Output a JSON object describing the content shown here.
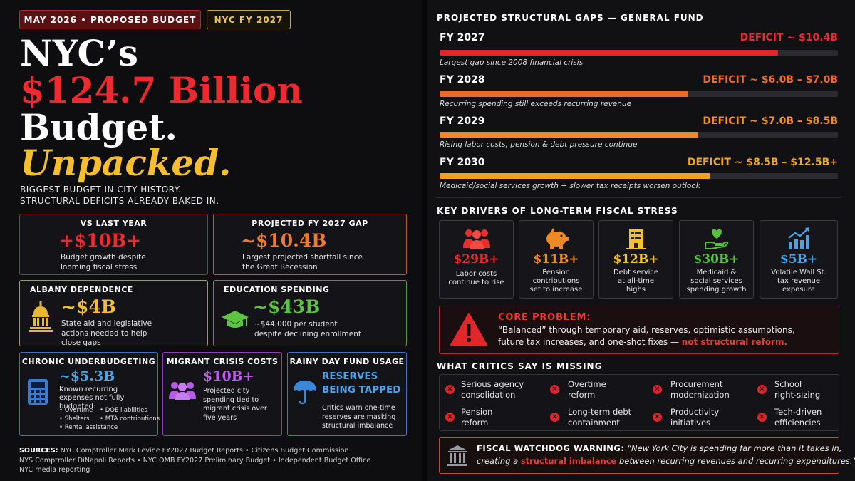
{
  "header": {
    "pill_date": "MAY 2026  •  PROPOSED BUDGET",
    "pill_fy": "NYC FY 2027",
    "title_line1": "NYC’s",
    "title_line2": "$124.7 Billion",
    "title_line3": "Budget.",
    "title_line4": "Unpacked.",
    "subtitle_line1": "BIGGEST BUDGET IN CITY HISTORY.",
    "subtitle_line2": "STRUCTURAL DEFICITS ALREADY BAKED IN."
  },
  "cards": {
    "vs_last_year": {
      "title": "VS LAST YEAR",
      "value": "+$10B+",
      "desc": "Budget growth despite looming fiscal stress"
    },
    "projected_gap": {
      "title": "PROJECTED FY 2027 GAP",
      "value": "~$10.4B",
      "desc": "Largest projected shortfall since the Great Recession"
    },
    "albany": {
      "title": "ALBANY DEPENDENCE",
      "value": "~$4B",
      "desc": "State aid and legislative actions needed to help close gaps"
    },
    "education": {
      "title": "EDUCATION SPENDING",
      "value": "~$43B",
      "desc1": "~$44,000  per student",
      "desc2": "despite declining enrollment"
    },
    "chronic": {
      "title": "CHRONIC UNDERBUDGETING",
      "value": "~$5.3B",
      "desc": "Known recurring expenses not fully budgeted:",
      "bullets": [
        "Overtime",
        "DOE liabilities",
        "Shelters",
        "MTA contributions",
        "Rental assistance"
      ]
    },
    "migrant": {
      "title": "MIGRANT CRISIS COSTS",
      "value": "$10B+",
      "desc": "Projected city spending tied to migrant crisis over five years"
    },
    "rainy": {
      "title": "RAINY DAY FUND USAGE",
      "value_line1": "RESERVES",
      "value_line2": "BEING TAPPED",
      "desc": "Critics warn one-time reserves are masking structural imbalance"
    }
  },
  "sources": {
    "label": "SOURCES:",
    "line1": " NYC Comptroller Mark Levine FY2027 Budget Reports  •  Citizens Budget Commission",
    "line2": "NYS Comptroller DiNapoli Reports  •  NYC OMB FY2027 Preliminary Budget  •  Independent Budget Office",
    "line3": "NYC media reporting"
  },
  "gaps": {
    "title": "PROJECTED STRUCTURAL GAPS — GENERAL FUND",
    "rows": [
      {
        "year": "FY 2027",
        "deficit": "DEFICIT ~ $10.4B",
        "note": "Largest gap since 2008 financial crisis",
        "fill": 0.85,
        "color": "#e5252c"
      },
      {
        "year": "FY 2028",
        "deficit": "DEFICIT ~ $6.0B – $7.0B",
        "note": "Recurring spending still exceeds recurring revenue",
        "fill": 0.625,
        "color": "#ee6a24"
      },
      {
        "year": "FY 2029",
        "deficit": "DEFICIT ~ $7.0B – $8.5B",
        "note": "Rising labor costs, pension & debt pressure continue",
        "fill": 0.65,
        "color": "#f08a22"
      },
      {
        "year": "FY 2030",
        "deficit": "DEFICIT ~ $8.5B – $12.5B+",
        "note": "Medicaid/social services growth + slower tax receipts worsen outlook",
        "fill": 0.68,
        "color": "#f2a023"
      }
    ]
  },
  "drivers": {
    "title": "KEY DRIVERS OF LONG-TERM FISCAL STRESS",
    "items": [
      {
        "value": "$29B+",
        "label1": "Labor costs",
        "label2": "continue to rise",
        "label3": "",
        "color": "#e5302f",
        "icon": "people-icon"
      },
      {
        "value": "$11B+",
        "label1": "Pension",
        "label2": "contributions",
        "label3": "set to increase",
        "color": "#f08a24",
        "icon": "piggy-bank-icon"
      },
      {
        "value": "$12B+",
        "label1": "Debt service",
        "label2": "at all-time",
        "label3": "highs",
        "color": "#f3c133",
        "icon": "building-icon"
      },
      {
        "value": "$30B+",
        "label1": "Medicaid &",
        "label2": "social services",
        "label3": "spending growth",
        "color": "#56c23e",
        "icon": "heart-hand-icon"
      },
      {
        "value": "$5B+",
        "label1": "Volatile Wall St.",
        "label2": "tax revenue",
        "label3": "exposure",
        "color": "#4aa3e8",
        "icon": "chart-up-icon"
      }
    ]
  },
  "core": {
    "title": "CORE PROBLEM:",
    "line1": "“Balanced” through temporary aid, reserves, optimistic assumptions,",
    "line2": "future tax increases, and one-shot fixes — ",
    "highlight": "not structural reform."
  },
  "critics": {
    "title": "WHAT CRITICS SAY IS MISSING",
    "items": [
      {
        "l1": "Serious agency",
        "l2": "consolidation"
      },
      {
        "l1": "Overtime",
        "l2": "reform"
      },
      {
        "l1": "Procurement",
        "l2": "modernization"
      },
      {
        "l1": "School",
        "l2": "right-sizing"
      },
      {
        "l1": "Pension",
        "l2": "reform"
      },
      {
        "l1": "Long-term debt",
        "l2": "containment"
      },
      {
        "l1": "Productivity",
        "l2": "initiatives"
      },
      {
        "l1": "Tech-driven",
        "l2": "efficiencies"
      }
    ]
  },
  "watchdog": {
    "label": "FISCAL WATCHDOG WARNING:",
    "quote1": " “New York City is spending far more than it takes in,",
    "quote2a": "creating a ",
    "quote2b": "structural imbalance",
    "quote2c": " between recurring revenues and recurring expenditures.”"
  },
  "colors": {
    "red": "#ec2a30",
    "gold": "#f4be30",
    "orange": "#ef7a2a",
    "green": "#5cc43f",
    "blue": "#4aa3e8",
    "purple": "#b65ce6"
  }
}
